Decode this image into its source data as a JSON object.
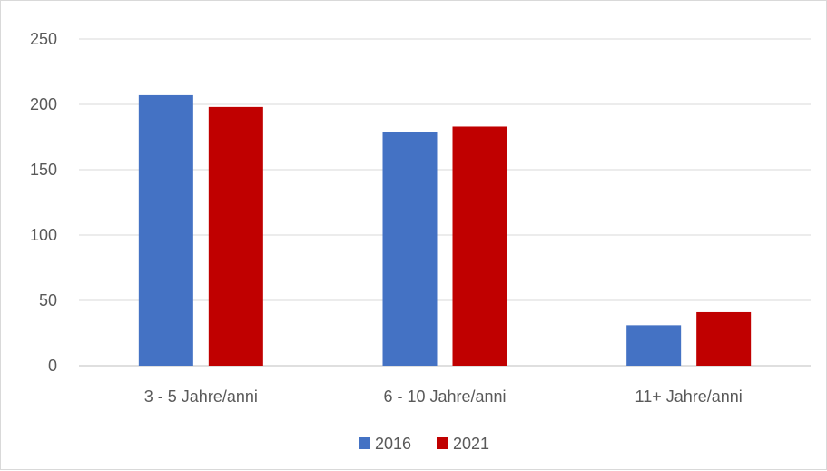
{
  "chart_data": {
    "type": "bar",
    "title": "",
    "xlabel": "",
    "ylabel": "",
    "categories": [
      "3 - 5 Jahre/anni",
      "6 - 10 Jahre/anni",
      "11+ Jahre/anni"
    ],
    "series": [
      {
        "name": "2016",
        "color": "#4472C4",
        "values": [
          207,
          179,
          31
        ]
      },
      {
        "name": "2021",
        "color": "#C00000",
        "values": [
          198,
          183,
          41
        ]
      }
    ],
    "ylim": [
      0,
      250
    ],
    "yticks": [
      "0",
      "50",
      "100",
      "150",
      "200",
      "250"
    ],
    "grid": true,
    "legend_position": "bottom"
  }
}
